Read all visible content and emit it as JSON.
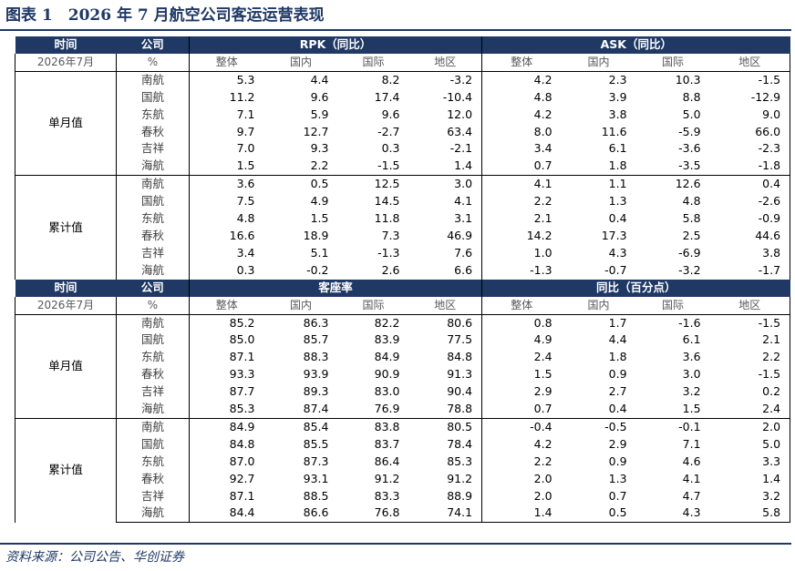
{
  "title": "图表 1　2026 年 7 月航空公司客运运营表现",
  "source": "资料来源：公司公告、华创证券",
  "top": {
    "header": {
      "time": "时间",
      "company": "公司",
      "groupA": "RPK（同比）",
      "groupB": "ASK（同比）"
    },
    "sub": {
      "period": "2026年7月",
      "unit": "%",
      "cols": [
        "整体",
        "国内",
        "国际",
        "地区"
      ]
    },
    "blocks": [
      {
        "label": "单月值",
        "rows": [
          {
            "co": "南航",
            "a": [
              "5.3",
              "4.4",
              "8.2",
              "-3.2"
            ],
            "b": [
              "4.2",
              "2.3",
              "10.3",
              "-1.5"
            ]
          },
          {
            "co": "国航",
            "a": [
              "11.2",
              "9.6",
              "17.4",
              "-10.4"
            ],
            "b": [
              "4.8",
              "3.9",
              "8.8",
              "-12.9"
            ]
          },
          {
            "co": "东航",
            "a": [
              "7.1",
              "5.9",
              "9.6",
              "12.0"
            ],
            "b": [
              "4.2",
              "3.8",
              "5.0",
              "9.0"
            ]
          },
          {
            "co": "春秋",
            "a": [
              "9.7",
              "12.7",
              "-2.7",
              "63.4"
            ],
            "b": [
              "8.0",
              "11.6",
              "-5.9",
              "66.0"
            ]
          },
          {
            "co": "吉祥",
            "a": [
              "7.0",
              "9.3",
              "0.3",
              "-2.1"
            ],
            "b": [
              "3.4",
              "6.1",
              "-3.6",
              "-2.3"
            ]
          },
          {
            "co": "海航",
            "a": [
              "1.5",
              "2.2",
              "-1.5",
              "1.4"
            ],
            "b": [
              "0.7",
              "1.8",
              "-3.5",
              "-1.8"
            ]
          }
        ]
      },
      {
        "label": "累计值",
        "rows": [
          {
            "co": "南航",
            "a": [
              "3.6",
              "0.5",
              "12.5",
              "3.0"
            ],
            "b": [
              "4.1",
              "1.1",
              "12.6",
              "0.4"
            ]
          },
          {
            "co": "国航",
            "a": [
              "7.5",
              "4.9",
              "14.5",
              "4.1"
            ],
            "b": [
              "2.2",
              "1.3",
              "4.8",
              "-2.6"
            ]
          },
          {
            "co": "东航",
            "a": [
              "4.8",
              "1.5",
              "11.8",
              "3.1"
            ],
            "b": [
              "2.1",
              "0.4",
              "5.8",
              "-0.9"
            ]
          },
          {
            "co": "春秋",
            "a": [
              "16.6",
              "18.9",
              "7.3",
              "46.9"
            ],
            "b": [
              "14.2",
              "17.3",
              "2.5",
              "44.6"
            ]
          },
          {
            "co": "吉祥",
            "a": [
              "3.4",
              "5.1",
              "-1.3",
              "7.6"
            ],
            "b": [
              "1.0",
              "4.3",
              "-6.9",
              "3.8"
            ]
          },
          {
            "co": "海航",
            "a": [
              "0.3",
              "-0.2",
              "2.6",
              "6.6"
            ],
            "b": [
              "-1.3",
              "-0.7",
              "-3.2",
              "-1.7"
            ]
          }
        ]
      }
    ]
  },
  "bottom": {
    "header": {
      "time": "时间",
      "company": "公司",
      "groupA": "客座率",
      "groupB": "同比（百分点）"
    },
    "sub": {
      "period": "2026年7月",
      "unit": "%",
      "cols": [
        "整体",
        "国内",
        "国际",
        "地区"
      ]
    },
    "blocks": [
      {
        "label": "单月值",
        "rows": [
          {
            "co": "南航",
            "a": [
              "85.2",
              "86.3",
              "82.2",
              "80.6"
            ],
            "b": [
              "0.8",
              "1.7",
              "-1.6",
              "-1.5"
            ]
          },
          {
            "co": "国航",
            "a": [
              "85.0",
              "85.7",
              "83.9",
              "77.5"
            ],
            "b": [
              "4.9",
              "4.4",
              "6.1",
              "2.1"
            ]
          },
          {
            "co": "东航",
            "a": [
              "87.1",
              "88.3",
              "84.9",
              "84.8"
            ],
            "b": [
              "2.4",
              "1.8",
              "3.6",
              "2.2"
            ]
          },
          {
            "co": "春秋",
            "a": [
              "93.3",
              "93.9",
              "90.9",
              "91.3"
            ],
            "b": [
              "1.5",
              "0.9",
              "3.0",
              "-1.5"
            ]
          },
          {
            "co": "吉祥",
            "a": [
              "87.7",
              "89.3",
              "83.0",
              "90.4"
            ],
            "b": [
              "2.9",
              "2.7",
              "3.2",
              "0.2"
            ]
          },
          {
            "co": "海航",
            "a": [
              "85.3",
              "87.4",
              "76.9",
              "78.8"
            ],
            "b": [
              "0.7",
              "0.4",
              "1.5",
              "2.4"
            ]
          }
        ]
      },
      {
        "label": "累计值",
        "rows": [
          {
            "co": "南航",
            "a": [
              "84.9",
              "85.4",
              "83.8",
              "80.5"
            ],
            "b": [
              "-0.4",
              "-0.5",
              "-0.1",
              "2.0"
            ]
          },
          {
            "co": "国航",
            "a": [
              "84.8",
              "85.5",
              "83.7",
              "78.4"
            ],
            "b": [
              "4.2",
              "2.9",
              "7.1",
              "5.0"
            ]
          },
          {
            "co": "东航",
            "a": [
              "87.0",
              "87.3",
              "86.4",
              "85.3"
            ],
            "b": [
              "2.2",
              "0.9",
              "4.6",
              "3.3"
            ]
          },
          {
            "co": "春秋",
            "a": [
              "92.7",
              "93.1",
              "91.2",
              "91.2"
            ],
            "b": [
              "2.0",
              "1.3",
              "4.1",
              "1.4"
            ]
          },
          {
            "co": "吉祥",
            "a": [
              "87.1",
              "88.5",
              "83.3",
              "88.9"
            ],
            "b": [
              "2.0",
              "0.7",
              "4.7",
              "3.2"
            ]
          },
          {
            "co": "海航",
            "a": [
              "84.4",
              "86.6",
              "76.8",
              "74.1"
            ],
            "b": [
              "1.4",
              "0.5",
              "4.3",
              "5.8"
            ]
          }
        ]
      }
    ]
  },
  "colors": {
    "navy": "#1f3864"
  }
}
